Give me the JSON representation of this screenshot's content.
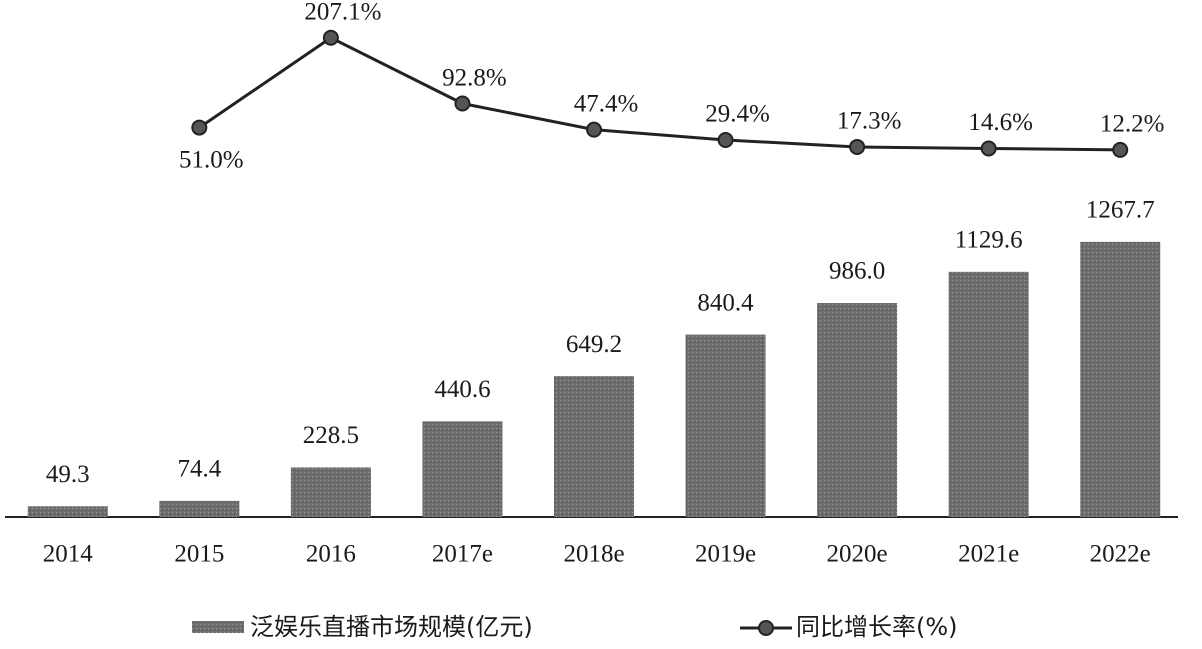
{
  "chart_data": {
    "type": "bar",
    "categories": [
      "2014",
      "2015",
      "2016",
      "2017e",
      "2018e",
      "2019e",
      "2020e",
      "2021e",
      "2022e"
    ],
    "series": [
      {
        "name": "泛娱乐直播市场规模(亿元)",
        "type": "bar",
        "color": "#7a7a7a",
        "values": [
          49.3,
          74.4,
          228.5,
          440.6,
          649.2,
          840.4,
          986.0,
          1129.6,
          1267.7
        ],
        "value_labels": [
          "49.3",
          "74.4",
          "228.5",
          "440.6",
          "649.2",
          "840.4",
          "986.0",
          "1129.6",
          "1267.7"
        ]
      },
      {
        "name": "同比增长率(%)",
        "type": "line",
        "axis": "y2",
        "color": "#222222",
        "values": [
          null,
          51.0,
          207.1,
          92.8,
          47.4,
          29.4,
          17.3,
          14.6,
          12.2
        ],
        "value_labels": [
          null,
          "51.0%",
          "207.1%",
          "92.8%",
          "47.4%",
          "29.4%",
          "17.3%",
          "14.6%",
          "12.2%"
        ]
      }
    ],
    "ylim": [
      0,
      2290
    ],
    "y2lim": [
      -626,
      238
    ]
  }
}
